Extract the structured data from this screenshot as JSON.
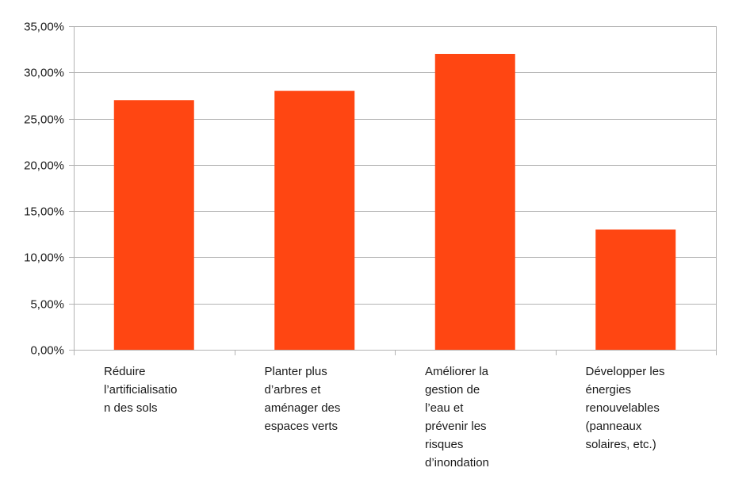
{
  "chart_data": {
    "type": "bar",
    "categories": [
      [
        "Réduire",
        "l’artificialisatio",
        "n des sols"
      ],
      [
        "Planter plus",
        "d’arbres et",
        "aménager des",
        "espaces verts"
      ],
      [
        "Améliorer la",
        "gestion de",
        "l’eau et",
        "prévenir les",
        "risques",
        "d’inondation"
      ],
      [
        "Développer les",
        "énergies",
        "renouvelables",
        "(panneaux",
        "solaires, etc.)"
      ]
    ],
    "values": [
      27,
      28,
      32,
      13
    ],
    "ylim": [
      0,
      35
    ],
    "yticks": [
      0,
      5,
      10,
      15,
      20,
      25,
      30,
      35
    ],
    "ytick_labels": [
      "0,00%",
      "5,00%",
      "10,00%",
      "15,00%",
      "20,00%",
      "25,00%",
      "30,00%",
      "35,00%"
    ],
    "grid": true,
    "bar_color": "#ff4612",
    "grid_color": "#b3b3b3",
    "title": "",
    "xlabel": "",
    "ylabel": ""
  }
}
